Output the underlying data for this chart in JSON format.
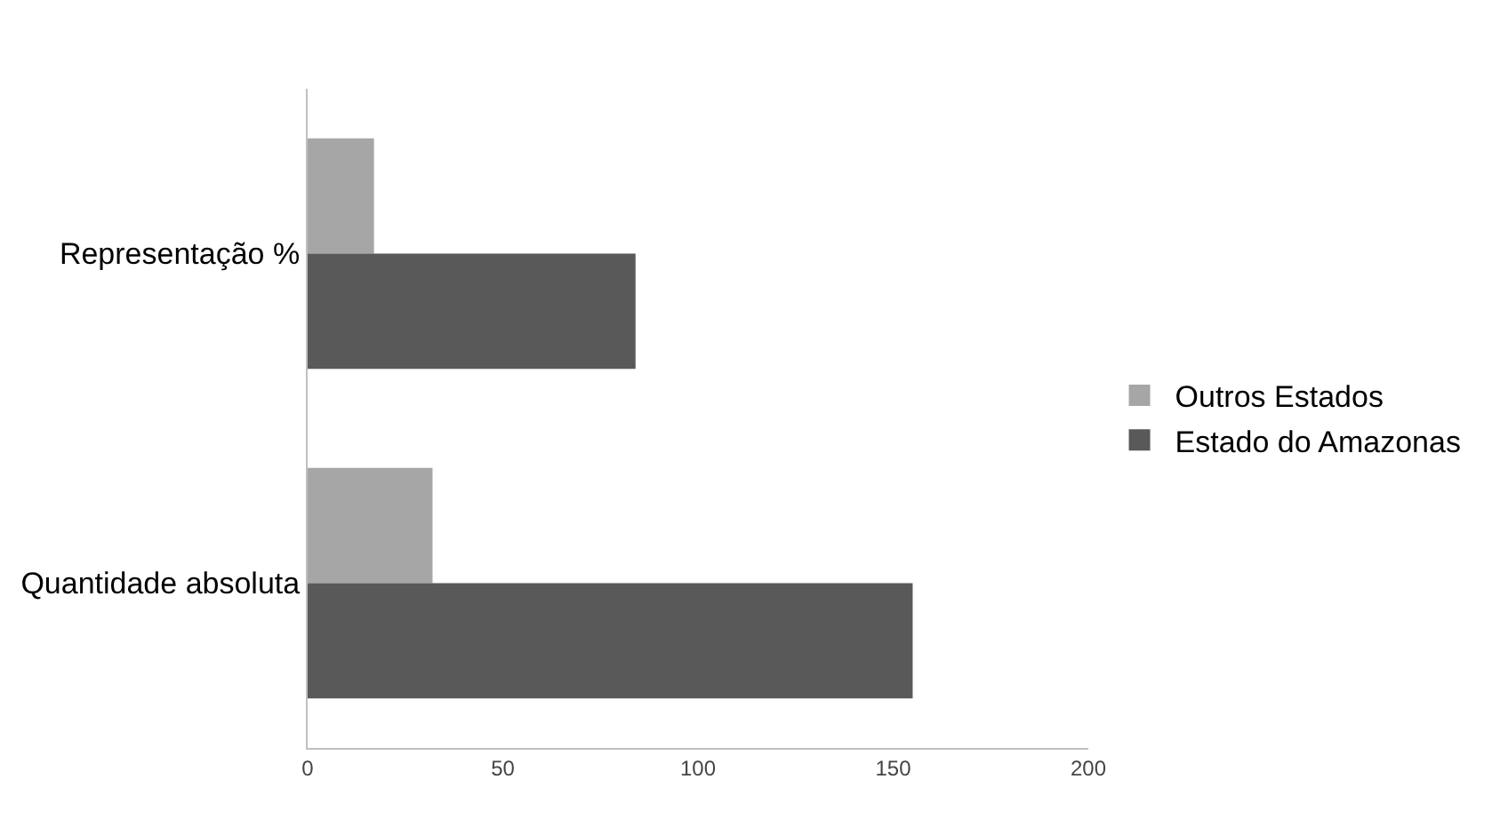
{
  "chart_data": {
    "type": "bar",
    "orientation": "horizontal",
    "categories": [
      "Representação %",
      "Quantidade absoluta"
    ],
    "series": [
      {
        "name": "Outros Estados",
        "color": "#a6a6a6",
        "values": [
          17,
          32
        ]
      },
      {
        "name": "Estado do Amazonas",
        "color": "#595959",
        "values": [
          84,
          155
        ]
      }
    ],
    "xlim": [
      0,
      200
    ],
    "xticks": [
      0,
      50,
      100,
      150,
      200
    ],
    "legend": "right"
  }
}
